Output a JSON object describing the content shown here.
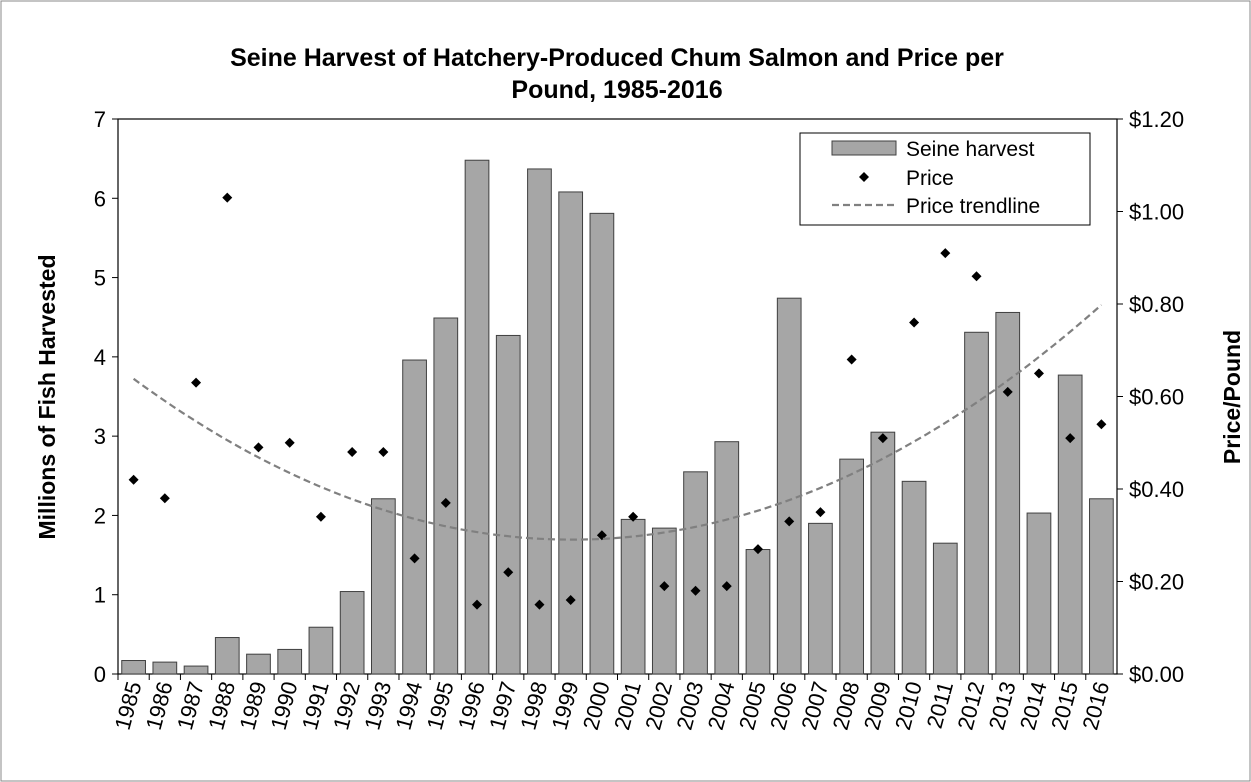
{
  "chart_data": {
    "type": "bar",
    "title_lines": [
      "Seine Harvest of Hatchery-Produced Chum Salmon and Price per",
      "Pound, 1985-2016"
    ],
    "y_label": "Millions of Fish Harvested",
    "y2_label": "Price/Pound",
    "categories": [
      "1985",
      "1986",
      "1987",
      "1988",
      "1989",
      "1990",
      "1991",
      "1992",
      "1993",
      "1994",
      "1995",
      "1996",
      "1997",
      "1998",
      "1999",
      "2000",
      "2001",
      "2002",
      "2003",
      "2004",
      "2005",
      "2006",
      "2007",
      "2008",
      "2009",
      "2010",
      "2011",
      "2012",
      "2013",
      "2014",
      "2015",
      "2016"
    ],
    "series": [
      {
        "name": "Seine harvest",
        "type": "bar",
        "color": "#a6a6a6",
        "values": [
          0.17,
          0.15,
          0.1,
          0.46,
          0.25,
          0.31,
          0.59,
          1.04,
          2.21,
          3.96,
          4.49,
          6.48,
          4.27,
          6.37,
          6.08,
          5.81,
          1.95,
          1.84,
          2.55,
          2.93,
          1.57,
          4.74,
          1.9,
          2.71,
          3.05,
          2.43,
          1.65,
          4.31,
          4.56,
          2.03,
          3.77,
          2.21
        ]
      },
      {
        "name": "Price",
        "type": "scatter",
        "axis": "y2",
        "color": "#000000",
        "values": [
          0.42,
          0.38,
          0.63,
          1.03,
          0.49,
          0.5,
          0.34,
          0.48,
          0.48,
          0.25,
          0.37,
          0.15,
          0.22,
          0.15,
          0.16,
          0.3,
          0.34,
          0.19,
          0.18,
          0.19,
          0.27,
          0.33,
          0.35,
          0.68,
          0.51,
          0.76,
          0.91,
          0.86,
          0.61,
          0.65,
          0.51,
          0.54
        ]
      }
    ],
    "trendline": {
      "name": "Price trendline",
      "of_series": 1,
      "order": 2,
      "color": "#808080"
    },
    "ylim": [
      0,
      7
    ],
    "yticks": [
      0,
      1,
      2,
      3,
      4,
      5,
      6,
      7
    ],
    "y2lim": [
      0,
      1.2
    ],
    "y2ticks": [
      {
        "value": 0,
        "label": "$0.00"
      },
      {
        "value": 0.2,
        "label": "$0.20"
      },
      {
        "value": 0.4,
        "label": "$0.40"
      },
      {
        "value": 0.6,
        "label": "$0.60"
      },
      {
        "value": 0.8,
        "label": "$0.80"
      },
      {
        "value": 1.0,
        "label": "$1.00"
      },
      {
        "value": 1.2,
        "label": "$1.20"
      }
    ],
    "legend": "top-right"
  }
}
